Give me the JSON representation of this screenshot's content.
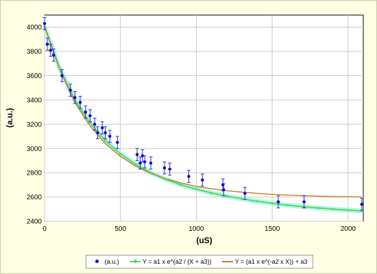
{
  "chart_data": {
    "type": "scatter",
    "xlabel": "(uS)",
    "ylabel": "(a.u.)",
    "xlim": [
      0,
      2100
    ],
    "ylim": [
      2400,
      4100
    ],
    "xticks": [
      0,
      500,
      1000,
      1500,
      2000
    ],
    "yticks": [
      2400,
      2600,
      2800,
      3000,
      3200,
      3400,
      3600,
      3800,
      4000
    ],
    "grid": true,
    "legend_position": "bottom",
    "series": [
      {
        "name": "(a.u.)",
        "kind": "points",
        "color": "#1010c8",
        "error_bar": 50,
        "points": [
          [
            0,
            4030
          ],
          [
            18,
            3860
          ],
          [
            40,
            3810
          ],
          [
            60,
            3770
          ],
          [
            115,
            3600
          ],
          [
            170,
            3480
          ],
          [
            200,
            3420
          ],
          [
            235,
            3380
          ],
          [
            270,
            3300
          ],
          [
            300,
            3270
          ],
          [
            330,
            3200
          ],
          [
            350,
            3130
          ],
          [
            380,
            3170
          ],
          [
            400,
            3130
          ],
          [
            430,
            3100
          ],
          [
            480,
            3050
          ],
          [
            610,
            2950
          ],
          [
            630,
            2880
          ],
          [
            645,
            2940
          ],
          [
            660,
            2890
          ],
          [
            700,
            2880
          ],
          [
            790,
            2840
          ],
          [
            825,
            2830
          ],
          [
            950,
            2770
          ],
          [
            1040,
            2740
          ],
          [
            1175,
            2700
          ],
          [
            1180,
            2660
          ],
          [
            1320,
            2630
          ],
          [
            1540,
            2560
          ],
          [
            1710,
            2560
          ],
          [
            2090,
            2540
          ]
        ]
      },
      {
        "name": "Y = a1 x e^(a2 / (X + a3))",
        "kind": "line",
        "color": "#55dd55",
        "points": [
          [
            0,
            4005
          ],
          [
            100,
            3660
          ],
          [
            200,
            3400
          ],
          [
            300,
            3210
          ],
          [
            400,
            3065
          ],
          [
            500,
            2955
          ],
          [
            600,
            2870
          ],
          [
            700,
            2800
          ],
          [
            800,
            2745
          ],
          [
            900,
            2700
          ],
          [
            1000,
            2665
          ],
          [
            1100,
            2633
          ],
          [
            1200,
            2607
          ],
          [
            1300,
            2585
          ],
          [
            1400,
            2565
          ],
          [
            1500,
            2548
          ],
          [
            1600,
            2533
          ],
          [
            1700,
            2520
          ],
          [
            1800,
            2510
          ],
          [
            1900,
            2500
          ],
          [
            2000,
            2492
          ],
          [
            2090,
            2485
          ]
        ]
      },
      {
        "name": "Y = (a1 x e^(-a2 x X)) + a3",
        "kind": "line",
        "color": "#c8782a",
        "points": [
          [
            0,
            4010
          ],
          [
            100,
            3650
          ],
          [
            200,
            3380
          ],
          [
            300,
            3185
          ],
          [
            400,
            3040
          ],
          [
            500,
            2935
          ],
          [
            600,
            2855
          ],
          [
            700,
            2795
          ],
          [
            800,
            2750
          ],
          [
            900,
            2715
          ],
          [
            1000,
            2688
          ],
          [
            1100,
            2668
          ],
          [
            1200,
            2652
          ],
          [
            1300,
            2640
          ],
          [
            1400,
            2630
          ],
          [
            1500,
            2622
          ],
          [
            1600,
            2616
          ],
          [
            1700,
            2611
          ],
          [
            1800,
            2607
          ],
          [
            1900,
            2604
          ],
          [
            2000,
            2602
          ],
          [
            2090,
            2600
          ]
        ]
      }
    ]
  }
}
